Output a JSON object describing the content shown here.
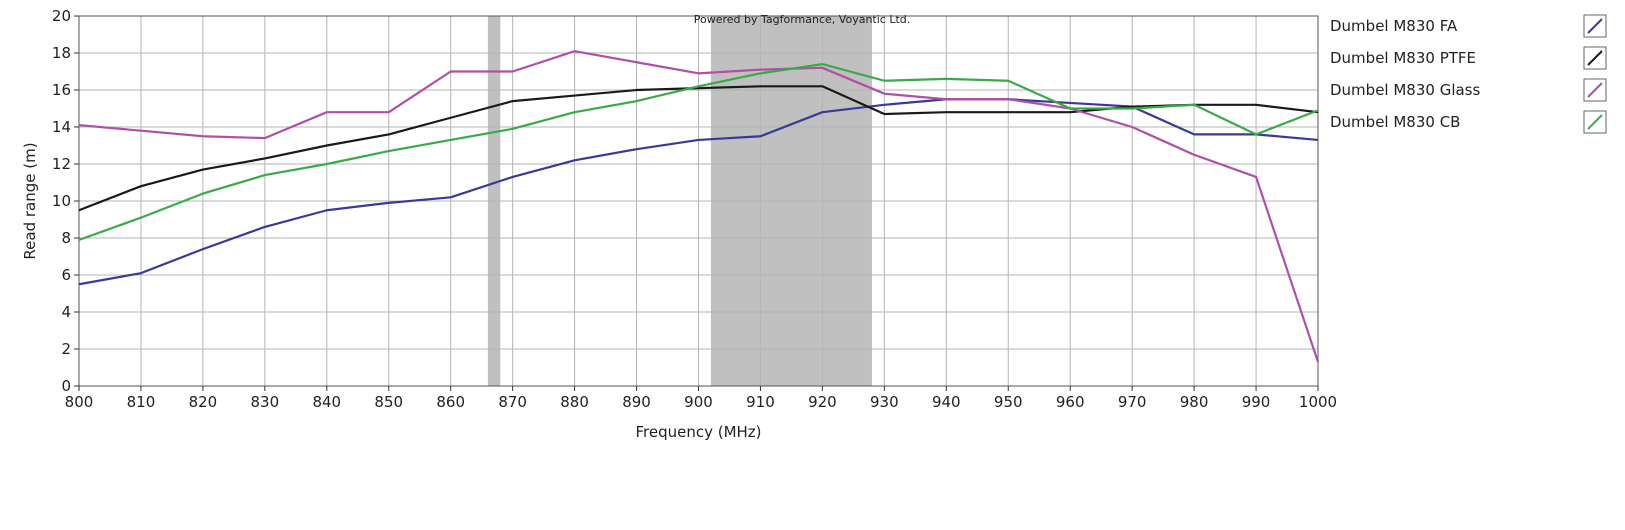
{
  "chart_data": {
    "type": "line",
    "credit": "Powered by Tagformance, Voyantic Ltd.",
    "xlabel": "Frequency (MHz)",
    "ylabel": "Read range (m)",
    "xlim": [
      800,
      1000
    ],
    "ylim": [
      0,
      20
    ],
    "x_ticks": [
      "800",
      "810",
      "820",
      "830",
      "840",
      "850",
      "860",
      "870",
      "880",
      "890",
      "900",
      "910",
      "920",
      "930",
      "940",
      "950",
      "960",
      "970",
      "980",
      "990",
      "1000"
    ],
    "y_ticks": [
      "0",
      "2",
      "4",
      "6",
      "8",
      "10",
      "12",
      "14",
      "16",
      "18",
      "20"
    ],
    "grid": true,
    "legend_position": "right",
    "highlight_bands": [
      [
        866,
        868
      ],
      [
        902,
        928
      ]
    ],
    "x": [
      800,
      810,
      820,
      830,
      840,
      850,
      860,
      870,
      880,
      890,
      900,
      910,
      920,
      930,
      940,
      950,
      960,
      970,
      980,
      990,
      1000
    ],
    "series": [
      {
        "name": "Dumbel M830 FA",
        "color": "#3a3a96",
        "values": [
          5.5,
          6.1,
          7.4,
          8.6,
          9.5,
          9.9,
          10.2,
          11.3,
          12.2,
          12.8,
          13.3,
          13.5,
          14.8,
          15.2,
          15.5,
          15.5,
          15.3,
          15.1,
          13.6,
          13.6,
          13.3
        ]
      },
      {
        "name": "Dumbel M830 PTFE",
        "color": "#1a1a1a",
        "values": [
          9.5,
          10.8,
          11.7,
          12.3,
          13.0,
          13.6,
          14.5,
          15.4,
          15.7,
          16.0,
          16.1,
          16.2,
          16.2,
          14.7,
          14.8,
          14.8,
          14.8,
          15.1,
          15.2,
          15.2,
          14.8
        ]
      },
      {
        "name": "Dumbel M830 Glass",
        "color": "#b04fa8",
        "values": [
          14.1,
          13.8,
          13.5,
          13.4,
          14.8,
          14.8,
          17.0,
          17.0,
          18.1,
          17.5,
          16.9,
          17.1,
          17.2,
          15.8,
          15.5,
          15.5,
          15.0,
          14.0,
          12.5,
          11.3,
          1.3
        ]
      },
      {
        "name": "Dumbel M830 CB",
        "color": "#3aaa48",
        "values": [
          7.9,
          9.1,
          10.4,
          11.4,
          12.0,
          12.7,
          13.3,
          13.9,
          14.8,
          15.4,
          16.2,
          16.9,
          17.4,
          16.5,
          16.6,
          16.5,
          15.0,
          15.0,
          15.2,
          13.6,
          14.9
        ]
      }
    ]
  }
}
